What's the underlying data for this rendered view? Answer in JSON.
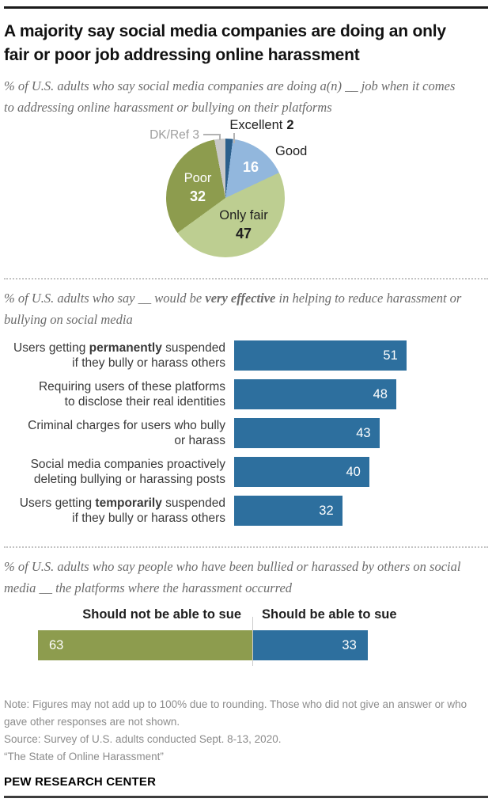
{
  "brand": "PEW RESEARCH CENTER",
  "title": "A majority say social media companies are doing an only fair or poor job addressing online harassment",
  "sections": {
    "pie": {
      "subtitle": "% of U.S. adults who say social media companies are doing a(n) __ job when it comes to addressing online harassment or bullying on their platforms",
      "labels": {
        "excellent_name": "Excellent",
        "excellent_value": "2",
        "good_name": "Good",
        "good_value": "16",
        "onlyfair_name": "Only fair",
        "onlyfair_value": "47",
        "poor_name": "Poor",
        "poor_value": "32",
        "dkref": "DK/Ref 3"
      }
    },
    "effective": {
      "subtitle_pre": "% of U.S. adults who say __ would be ",
      "subtitle_bold": "very effective",
      "subtitle_post": " in helping to reduce harassment or bullying on social media",
      "rows": [
        {
          "pre": "Users getting ",
          "bold": "permanently",
          "post": " suspended",
          "line2": "if they bully or harass others"
        },
        {
          "pre": "Requiring users of these platforms",
          "bold": "",
          "post": "",
          "line2": "to disclose their real identities"
        },
        {
          "pre": "Criminal charges for users who bully",
          "bold": "",
          "post": "",
          "line2": "or harass"
        },
        {
          "pre": "Social media companies proactively",
          "bold": "",
          "post": "",
          "line2": "deleting bullying or harassing posts"
        },
        {
          "pre": "Users getting ",
          "bold": "temporarily",
          "post": " suspended",
          "line2": "if they bully or harass others"
        }
      ]
    },
    "sue": {
      "subtitle": "% of U.S. adults who say people who have been bullied or harassed by others on social media __ the platforms where the harassment occurred",
      "left_header": "Should not be able to sue",
      "right_header": "Should be able to sue"
    }
  },
  "footer": {
    "note": "Note: Figures may not add up to 100% due to rounding. Those who did not give an answer or who gave other responses are not shown.",
    "source": "Source: Survey of U.S. adults conducted Sept. 8-13, 2020.",
    "report": "“The State of Online Harassment”"
  },
  "colors": {
    "excellent": "#2b5f8c",
    "good": "#92b7dd",
    "only_fair": "#bdce91",
    "poor": "#8d9c4e",
    "dk_ref": "#c9c9c9",
    "bar_blue": "#2d6f9e",
    "bar_olive": "#8d9c4e"
  },
  "chart_data": [
    {
      "type": "pie",
      "title": "% of U.S. adults who say social media companies are doing a(n) __ job when it comes to addressing online harassment or bullying on their platforms",
      "labels": [
        "Excellent",
        "Good",
        "Only fair",
        "Poor",
        "DK/Ref"
      ],
      "values": [
        2,
        16,
        47,
        32,
        3
      ],
      "colors": [
        "#2b5f8c",
        "#92b7dd",
        "#bdce91",
        "#8d9c4e",
        "#c9c9c9"
      ],
      "start_angle": "top",
      "direction": "clockwise",
      "legend_position": "labels-on-and-around-slices"
    },
    {
      "type": "bar",
      "orientation": "horizontal",
      "title": "% of U.S. adults who say __ would be very effective in helping to reduce harassment or bullying on social media",
      "categories": [
        "Users getting permanently suspended if they bully or harass others",
        "Requiring users of these platforms to disclose their real identities",
        "Criminal charges for users who bully or harass",
        "Social media companies proactively deleting bullying or harassing posts",
        "Users getting temporarily suspended if they bully or harass others"
      ],
      "values": [
        51,
        48,
        43,
        40,
        32
      ],
      "bar_color": "#2d6f9e",
      "xlim": [
        0,
        100
      ],
      "value_labels": "inside-right, white",
      "grid": false
    },
    {
      "type": "bar",
      "orientation": "horizontal",
      "stacked": true,
      "title": "% of U.S. adults who say people who have been bullied or harassed by others on social media __ the platforms where the harassment occurred",
      "categories": [
        "Should not be able to sue",
        "Should be able to sue"
      ],
      "values": [
        63,
        33
      ],
      "colors": [
        "#8d9c4e",
        "#2d6f9e"
      ],
      "grid": false
    }
  ]
}
